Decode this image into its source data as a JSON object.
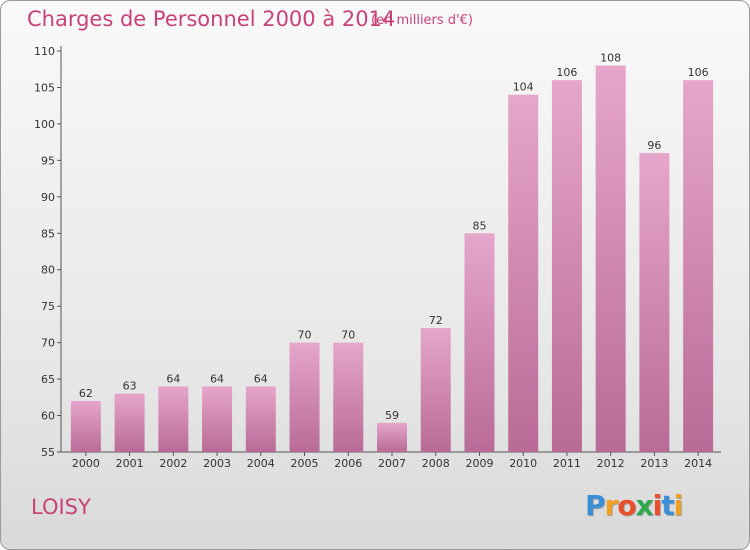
{
  "title": "Charges de Personnel 2000 à 2014",
  "subtitle": "(en milliers d'€)",
  "commune": "LOISY",
  "logo": {
    "letters": [
      "P",
      "r",
      "o",
      "x",
      "i",
      "t",
      "i"
    ],
    "colors": [
      "#3a8fd6",
      "#f0a020",
      "#e84f2a",
      "#2fa84f",
      "#e84f2a",
      "#3a8fd6",
      "#f0a020"
    ]
  },
  "chart_data": {
    "type": "bar",
    "categories": [
      "2000",
      "2001",
      "2002",
      "2003",
      "2004",
      "2005",
      "2006",
      "2007",
      "2008",
      "2009",
      "2010",
      "2011",
      "2012",
      "2013",
      "2014"
    ],
    "values": [
      62,
      63,
      64,
      64,
      64,
      70,
      70,
      59,
      72,
      85,
      104,
      106,
      108,
      96,
      106
    ],
    "ylim": [
      55,
      110
    ],
    "yticks": [
      55,
      60,
      65,
      70,
      75,
      80,
      85,
      90,
      95,
      100,
      105,
      110
    ],
    "grid": false,
    "bar_color": "#d98ab4"
  }
}
